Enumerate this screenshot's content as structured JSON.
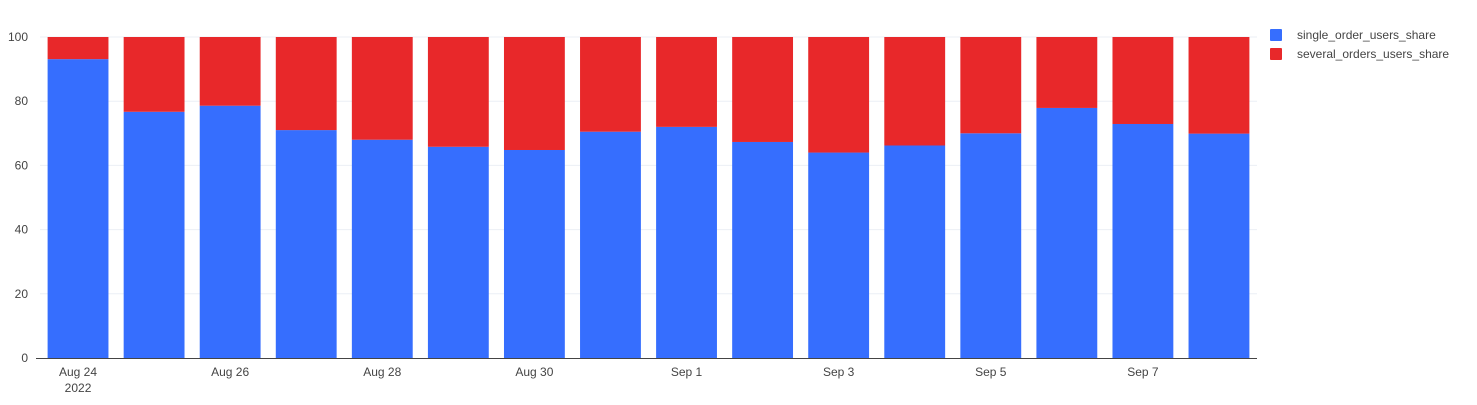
{
  "chart_data": {
    "type": "bar",
    "stacked": true,
    "x": [
      "2022-08-24",
      "2022-08-25",
      "2022-08-26",
      "2022-08-27",
      "2022-08-28",
      "2022-08-29",
      "2022-08-30",
      "2022-08-31",
      "2022-09-01",
      "2022-09-02",
      "2022-09-03",
      "2022-09-04",
      "2022-09-05",
      "2022-09-06",
      "2022-09-07",
      "2022-09-08"
    ],
    "x_tick_labels": [
      {
        "date": "2022-08-24",
        "label": "Aug 24",
        "sublabel": "2022"
      },
      {
        "date": "2022-08-26",
        "label": "Aug 26"
      },
      {
        "date": "2022-08-28",
        "label": "Aug 28"
      },
      {
        "date": "2022-08-30",
        "label": "Aug 30"
      },
      {
        "date": "2022-09-01",
        "label": "Sep 1"
      },
      {
        "date": "2022-09-03",
        "label": "Sep 3"
      },
      {
        "date": "2022-09-05",
        "label": "Sep 5"
      },
      {
        "date": "2022-09-07",
        "label": "Sep 7"
      }
    ],
    "series": [
      {
        "name": "single_order_users_share",
        "color": "#366efe",
        "values": [
          93.1,
          76.7,
          78.6,
          71.0,
          68.0,
          65.8,
          64.8,
          70.5,
          72.0,
          67.3,
          64.0,
          66.2,
          70.0,
          77.9,
          72.9,
          69.9
        ]
      },
      {
        "name": "several_orders_users_share",
        "color": "#e8282a",
        "values": [
          6.9,
          23.3,
          21.4,
          29.0,
          32.0,
          34.2,
          35.2,
          29.5,
          28.0,
          32.7,
          36.0,
          33.8,
          30.0,
          22.1,
          27.1,
          30.1
        ]
      }
    ],
    "y_ticks": [
      0,
      20,
      40,
      60,
      80,
      100
    ],
    "ylim": [
      0,
      100
    ],
    "grid": true,
    "legend": "top-right",
    "title": "",
    "xlabel": "",
    "ylabel": ""
  }
}
